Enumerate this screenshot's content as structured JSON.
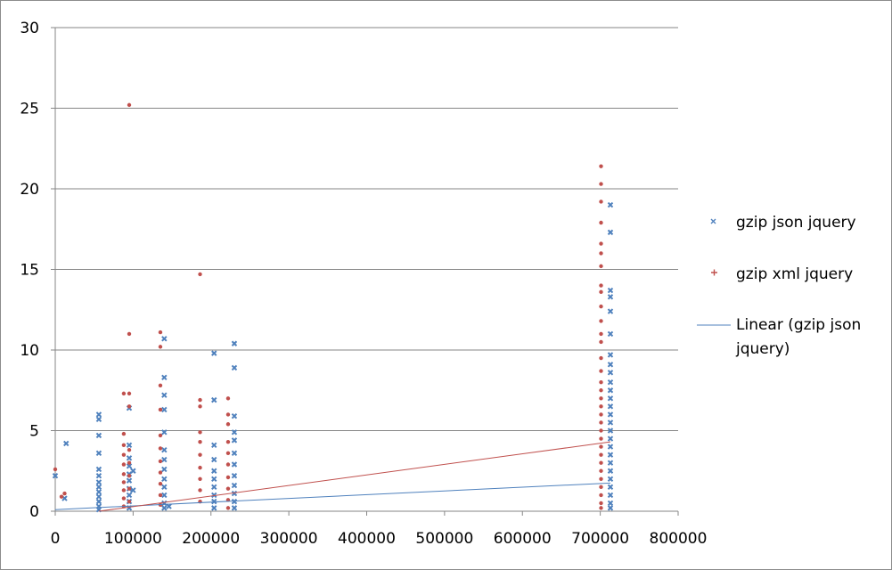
{
  "chart_data": {
    "type": "scatter",
    "title": "",
    "xlabel": "",
    "ylabel": "",
    "xlim": [
      0,
      800000
    ],
    "ylim": [
      0,
      30
    ],
    "x_ticks": [
      "0",
      "100000",
      "200000",
      "300000",
      "400000",
      "500000",
      "600000",
      "700000",
      "800000"
    ],
    "y_ticks": [
      "0",
      "5",
      "10",
      "15",
      "20",
      "25",
      "30"
    ],
    "grid": "horizontal",
    "legend_position": "right",
    "series": [
      {
        "name": "gzip json jquery",
        "marker": "x",
        "color": "#4f81bd",
        "points": [
          [
            0,
            2.2
          ],
          [
            12000,
            0.8
          ],
          [
            14000,
            4.2
          ],
          [
            56000,
            6.0
          ],
          [
            56000,
            5.7
          ],
          [
            56000,
            4.7
          ],
          [
            56000,
            3.6
          ],
          [
            56000,
            2.6
          ],
          [
            56000,
            2.2
          ],
          [
            56000,
            1.8
          ],
          [
            56000,
            1.5
          ],
          [
            56000,
            1.2
          ],
          [
            56000,
            0.9
          ],
          [
            56000,
            0.6
          ],
          [
            56000,
            0.3
          ],
          [
            56000,
            0.1
          ],
          [
            95000,
            6.4
          ],
          [
            95000,
            4.1
          ],
          [
            95000,
            3.3
          ],
          [
            95000,
            2.8
          ],
          [
            95000,
            2.3
          ],
          [
            95000,
            1.9
          ],
          [
            95000,
            1.4
          ],
          [
            95000,
            1.0
          ],
          [
            95000,
            0.6
          ],
          [
            95000,
            0.2
          ],
          [
            100000,
            2.5
          ],
          [
            100000,
            1.3
          ],
          [
            140000,
            10.7
          ],
          [
            140000,
            8.3
          ],
          [
            140000,
            7.2
          ],
          [
            140000,
            6.3
          ],
          [
            140000,
            4.9
          ],
          [
            140000,
            3.8
          ],
          [
            140000,
            3.2
          ],
          [
            140000,
            2.6
          ],
          [
            140000,
            2.0
          ],
          [
            140000,
            1.5
          ],
          [
            140000,
            1.0
          ],
          [
            140000,
            0.5
          ],
          [
            140000,
            0.2
          ],
          [
            146000,
            0.3
          ],
          [
            204000,
            9.8
          ],
          [
            204000,
            6.9
          ],
          [
            204000,
            4.1
          ],
          [
            204000,
            3.2
          ],
          [
            204000,
            2.5
          ],
          [
            204000,
            2.0
          ],
          [
            204000,
            1.5
          ],
          [
            204000,
            1.0
          ],
          [
            204000,
            0.6
          ],
          [
            204000,
            0.2
          ],
          [
            230000,
            10.4
          ],
          [
            230000,
            8.9
          ],
          [
            230000,
            5.9
          ],
          [
            230000,
            4.9
          ],
          [
            230000,
            4.4
          ],
          [
            230000,
            3.6
          ],
          [
            230000,
            2.9
          ],
          [
            230000,
            2.2
          ],
          [
            230000,
            1.6
          ],
          [
            230000,
            1.1
          ],
          [
            230000,
            0.6
          ],
          [
            230000,
            0.2
          ],
          [
            713000,
            19.0
          ],
          [
            713000,
            17.3
          ],
          [
            713000,
            13.7
          ],
          [
            713000,
            13.3
          ],
          [
            713000,
            12.4
          ],
          [
            713000,
            11.0
          ],
          [
            713000,
            9.7
          ],
          [
            713000,
            9.1
          ],
          [
            713000,
            8.6
          ],
          [
            713000,
            8.0
          ],
          [
            713000,
            7.5
          ],
          [
            713000,
            7.0
          ],
          [
            713000,
            6.5
          ],
          [
            713000,
            6.0
          ],
          [
            713000,
            5.5
          ],
          [
            713000,
            5.0
          ],
          [
            713000,
            4.5
          ],
          [
            713000,
            4.0
          ],
          [
            713000,
            3.5
          ],
          [
            713000,
            3.0
          ],
          [
            713000,
            2.5
          ],
          [
            713000,
            2.0
          ],
          [
            713000,
            1.5
          ],
          [
            713000,
            1.0
          ],
          [
            713000,
            0.5
          ],
          [
            713000,
            0.2
          ]
        ]
      },
      {
        "name": "gzip xml jquery",
        "marker": "+",
        "color": "#c0504d",
        "points": [
          [
            0,
            2.6
          ],
          [
            8000,
            0.9
          ],
          [
            12000,
            1.1
          ],
          [
            88000,
            7.3
          ],
          [
            88000,
            4.8
          ],
          [
            88000,
            4.1
          ],
          [
            88000,
            3.5
          ],
          [
            88000,
            2.9
          ],
          [
            88000,
            2.3
          ],
          [
            88000,
            1.8
          ],
          [
            88000,
            1.3
          ],
          [
            88000,
            0.8
          ],
          [
            88000,
            0.3
          ],
          [
            95000,
            25.2
          ],
          [
            95000,
            11.0
          ],
          [
            95000,
            7.3
          ],
          [
            95000,
            6.5
          ],
          [
            95000,
            3.8
          ],
          [
            95000,
            3.0
          ],
          [
            95000,
            2.2
          ],
          [
            95000,
            1.4
          ],
          [
            95000,
            0.6
          ],
          [
            135000,
            11.1
          ],
          [
            135000,
            10.2
          ],
          [
            135000,
            7.8
          ],
          [
            135000,
            6.3
          ],
          [
            135000,
            4.7
          ],
          [
            135000,
            3.9
          ],
          [
            135000,
            3.1
          ],
          [
            135000,
            2.4
          ],
          [
            135000,
            1.7
          ],
          [
            135000,
            1.0
          ],
          [
            135000,
            0.4
          ],
          [
            186000,
            14.7
          ],
          [
            186000,
            6.9
          ],
          [
            186000,
            6.5
          ],
          [
            186000,
            4.9
          ],
          [
            186000,
            4.3
          ],
          [
            186000,
            3.5
          ],
          [
            186000,
            2.7
          ],
          [
            186000,
            2.0
          ],
          [
            186000,
            1.3
          ],
          [
            186000,
            0.6
          ],
          [
            222000,
            7.0
          ],
          [
            222000,
            6.0
          ],
          [
            222000,
            5.4
          ],
          [
            222000,
            4.3
          ],
          [
            222000,
            3.6
          ],
          [
            222000,
            2.9
          ],
          [
            222000,
            2.1
          ],
          [
            222000,
            1.4
          ],
          [
            222000,
            0.7
          ],
          [
            222000,
            0.2
          ],
          [
            701000,
            21.4
          ],
          [
            701000,
            20.3
          ],
          [
            701000,
            19.2
          ],
          [
            701000,
            17.9
          ],
          [
            701000,
            16.6
          ],
          [
            701000,
            16.0
          ],
          [
            701000,
            15.2
          ],
          [
            701000,
            14.0
          ],
          [
            701000,
            13.6
          ],
          [
            701000,
            12.7
          ],
          [
            701000,
            11.8
          ],
          [
            701000,
            11.0
          ],
          [
            701000,
            10.5
          ],
          [
            701000,
            9.5
          ],
          [
            701000,
            8.7
          ],
          [
            701000,
            8.0
          ],
          [
            701000,
            7.5
          ],
          [
            701000,
            7.0
          ],
          [
            701000,
            6.5
          ],
          [
            701000,
            6.0
          ],
          [
            701000,
            5.5
          ],
          [
            701000,
            5.0
          ],
          [
            701000,
            4.5
          ],
          [
            701000,
            4.0
          ],
          [
            701000,
            3.5
          ],
          [
            701000,
            3.0
          ],
          [
            701000,
            2.5
          ],
          [
            701000,
            2.0
          ],
          [
            701000,
            1.5
          ],
          [
            701000,
            1.0
          ],
          [
            701000,
            0.5
          ],
          [
            701000,
            0.2
          ]
        ]
      }
    ],
    "trendlines": [
      {
        "name": "Linear (gzip json jquery)",
        "color": "#4f81bd",
        "x": [
          0,
          713000
        ],
        "y": [
          0.1,
          1.75
        ]
      },
      {
        "color": "#c0504d",
        "x": [
          56000,
          713000
        ],
        "y": [
          0.0,
          4.3
        ]
      }
    ],
    "legend": [
      {
        "label": "gzip json jquery",
        "symbol": "x",
        "color": "#4f81bd"
      },
      {
        "label": "gzip xml jquery",
        "symbol": "+",
        "color": "#c0504d"
      },
      {
        "label_lines": [
          "Linear (gzip json",
          "jquery)"
        ],
        "symbol": "line",
        "color": "#4f81bd"
      }
    ]
  }
}
